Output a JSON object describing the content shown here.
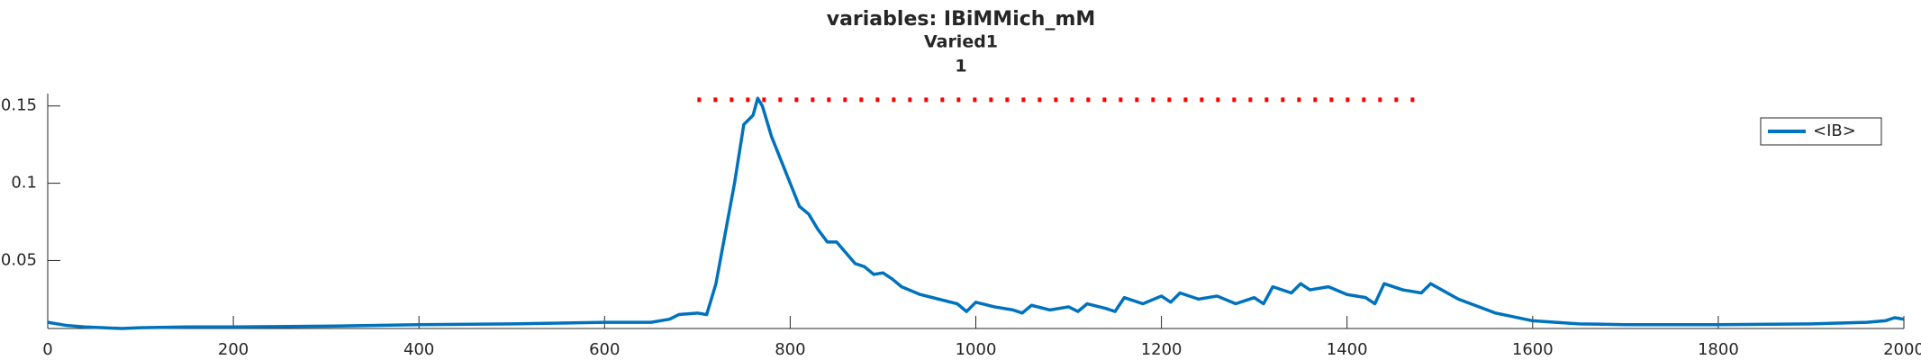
{
  "chart_data": {
    "type": "line",
    "title": "variables: IBiMMich_mM",
    "subtitle": [
      "Varied1",
      "1"
    ],
    "x": [
      0,
      20,
      40,
      60,
      80,
      100,
      150,
      200,
      300,
      400,
      500,
      600,
      650,
      670,
      680,
      700,
      710,
      720,
      740,
      750,
      760,
      765,
      770,
      780,
      790,
      800,
      810,
      820,
      830,
      840,
      850,
      860,
      870,
      880,
      890,
      900,
      910,
      920,
      940,
      960,
      980,
      990,
      1000,
      1020,
      1040,
      1050,
      1060,
      1080,
      1100,
      1110,
      1120,
      1140,
      1150,
      1160,
      1180,
      1200,
      1210,
      1220,
      1240,
      1260,
      1280,
      1300,
      1310,
      1320,
      1340,
      1350,
      1360,
      1380,
      1400,
      1420,
      1430,
      1440,
      1460,
      1480,
      1490,
      1520,
      1560,
      1600,
      1650,
      1700,
      1800,
      1900,
      1960,
      1980,
      1990,
      2000
    ],
    "series": [
      {
        "name": "<IB>",
        "color": "#0072bd",
        "values": [
          0.01,
          0.008,
          0.007,
          0.0065,
          0.006,
          0.0065,
          0.007,
          0.007,
          0.0075,
          0.0085,
          0.009,
          0.01,
          0.01,
          0.012,
          0.015,
          0.016,
          0.015,
          0.035,
          0.1,
          0.138,
          0.144,
          0.155,
          0.15,
          0.13,
          0.115,
          0.1,
          0.085,
          0.08,
          0.07,
          0.062,
          0.062,
          0.055,
          0.048,
          0.046,
          0.041,
          0.042,
          0.038,
          0.033,
          0.028,
          0.025,
          0.022,
          0.017,
          0.023,
          0.02,
          0.018,
          0.016,
          0.021,
          0.018,
          0.02,
          0.017,
          0.022,
          0.019,
          0.017,
          0.026,
          0.022,
          0.027,
          0.023,
          0.029,
          0.025,
          0.027,
          0.022,
          0.026,
          0.022,
          0.033,
          0.029,
          0.035,
          0.031,
          0.033,
          0.028,
          0.026,
          0.022,
          0.035,
          0.031,
          0.029,
          0.035,
          0.025,
          0.016,
          0.011,
          0.009,
          0.0085,
          0.0085,
          0.009,
          0.01,
          0.011,
          0.013,
          0.012
        ]
      }
    ],
    "reference_line": {
      "y": 0.154,
      "x": [
        700,
        1480
      ],
      "color": "#ff0000"
    },
    "xlim": [
      0,
      2000
    ],
    "xticks": [
      0,
      200,
      400,
      600,
      800,
      1000,
      1200,
      1400,
      1600,
      1800,
      2000
    ],
    "ylim": [
      0.006,
      0.158
    ],
    "yticks": [
      0.05,
      0.1,
      0.15
    ],
    "legend": "upper right"
  }
}
